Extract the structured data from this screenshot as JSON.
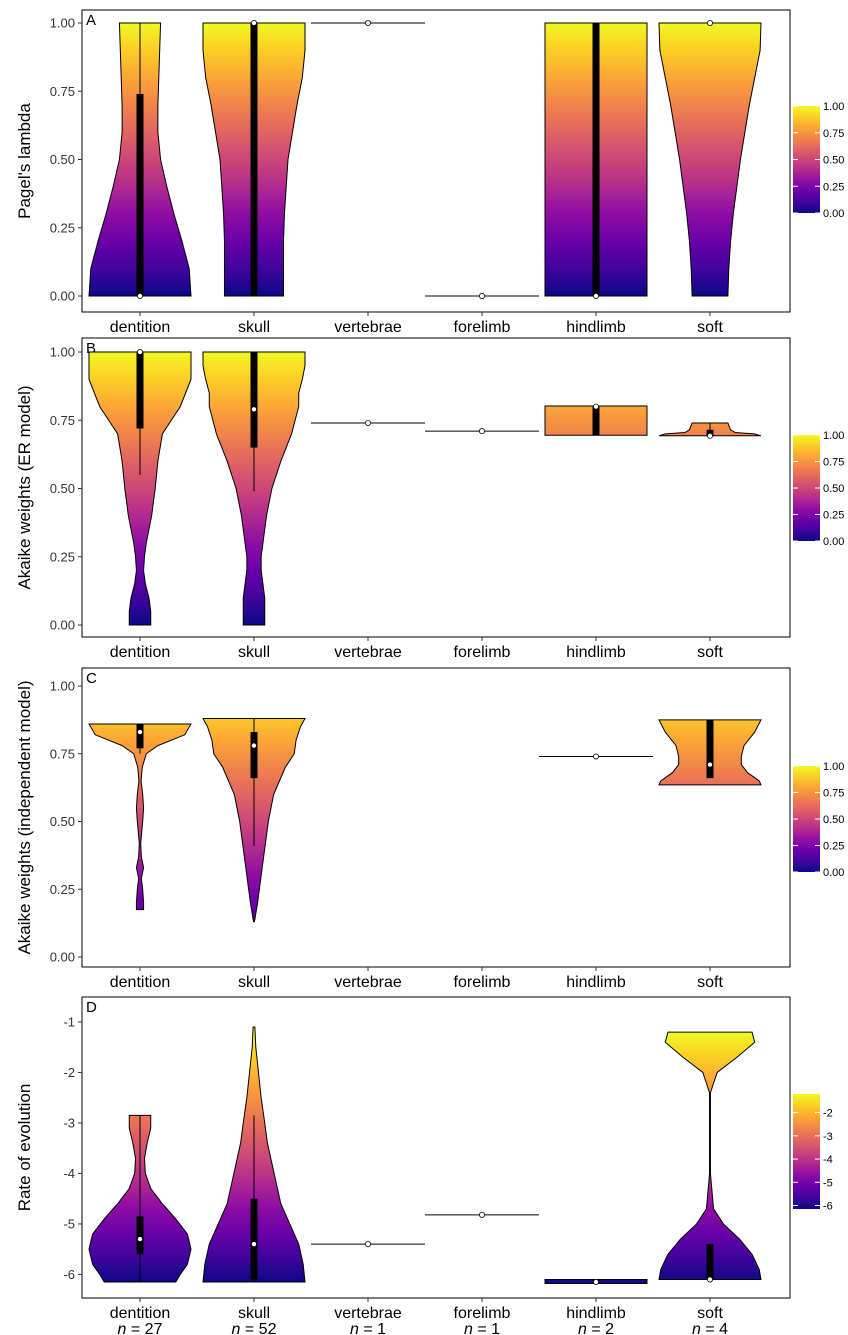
{
  "chart_data": [
    {
      "type": "violin",
      "panel_label": "A",
      "ylabel": "Pagel's lambda",
      "ylim": [
        0,
        1
      ],
      "yticks": [
        0,
        0.25,
        0.5,
        0.75,
        1
      ],
      "ytick_labels": [
        "0.00",
        "0.25",
        "0.50",
        "0.75",
        "1.00"
      ],
      "categories": [
        "dentition",
        "skull",
        "vertebrae",
        "forelimb",
        "hindlimb",
        "soft"
      ],
      "colorbar": {
        "range": [
          0,
          1
        ],
        "ticks": [
          0,
          0.25,
          0.5,
          0.75,
          1
        ],
        "tick_labels": [
          "0.00",
          "0.25",
          "0.50",
          "0.75",
          "1.00"
        ]
      },
      "violins": [
        {
          "category": "dentition",
          "profile": [
            [
              0,
              0.57
            ],
            [
              0.1,
              0.55
            ],
            [
              0.2,
              0.47
            ],
            [
              0.3,
              0.38
            ],
            [
              0.4,
              0.3
            ],
            [
              0.5,
              0.23
            ],
            [
              0.6,
              0.2
            ],
            [
              0.7,
              0.2
            ],
            [
              0.8,
              0.21
            ],
            [
              0.9,
              0.22
            ],
            [
              1.0,
              0.23
            ]
          ],
          "median": 0.0,
          "q1": 0.0,
          "q3": 0.74,
          "wmin": 0.0,
          "wmax": 1.0
        },
        {
          "category": "skull",
          "profile": [
            [
              0,
              0.33
            ],
            [
              0.1,
              0.33
            ],
            [
              0.2,
              0.33
            ],
            [
              0.3,
              0.34
            ],
            [
              0.4,
              0.36
            ],
            [
              0.5,
              0.38
            ],
            [
              0.6,
              0.43
            ],
            [
              0.7,
              0.48
            ],
            [
              0.8,
              0.54
            ],
            [
              0.9,
              0.57
            ],
            [
              1.0,
              0.57
            ]
          ],
          "median": 1.0,
          "q1": 0.0,
          "q3": 1.0,
          "wmin": 0.0,
          "wmax": 1.0
        },
        {
          "category": "vertebrae",
          "profile": [],
          "median": 1.0,
          "q1": 1.0,
          "q3": 1.0,
          "wmin": 1.0,
          "wmax": 1.0
        },
        {
          "category": "forelimb",
          "profile": [],
          "median": 0.0,
          "q1": 0.0,
          "q3": 0.0,
          "wmin": 0.0,
          "wmax": 0.0
        },
        {
          "category": "hindlimb",
          "profile": [
            [
              0,
              0.57
            ],
            [
              0.5,
              0.57
            ],
            [
              1.0,
              0.57
            ]
          ],
          "median": 0.0,
          "q1": 0.0,
          "q3": 1.0,
          "wmin": 0.0,
          "wmax": 1.0
        },
        {
          "category": "soft",
          "profile": [
            [
              0,
              0.2
            ],
            [
              0.1,
              0.21
            ],
            [
              0.2,
              0.23
            ],
            [
              0.3,
              0.26
            ],
            [
              0.4,
              0.3
            ],
            [
              0.5,
              0.34
            ],
            [
              0.6,
              0.39
            ],
            [
              0.7,
              0.44
            ],
            [
              0.8,
              0.5
            ],
            [
              0.9,
              0.56
            ],
            [
              1.0,
              0.57
            ]
          ],
          "median": 1.0,
          "q1": 1.0,
          "q3": 1.0,
          "wmin": 1.0,
          "wmax": 1.0
        }
      ]
    },
    {
      "type": "violin",
      "panel_label": "B",
      "ylabel": "Akaike weights (ER model)",
      "ylim": [
        0,
        1
      ],
      "yticks": [
        0,
        0.25,
        0.5,
        0.75,
        1
      ],
      "ytick_labels": [
        "0.00",
        "0.25",
        "0.50",
        "0.75",
        "1.00"
      ],
      "categories": [
        "dentition",
        "skull",
        "vertebrae",
        "forelimb",
        "hindlimb",
        "soft"
      ],
      "colorbar": {
        "range": [
          0,
          1
        ],
        "ticks": [
          0,
          0.25,
          0.5,
          0.75,
          1
        ],
        "tick_labels": [
          "0.00",
          "0.25",
          "0.50",
          "0.75",
          "1.00"
        ]
      },
      "violins": [
        {
          "category": "dentition",
          "profile": [
            [
              0,
              0.12
            ],
            [
              0.05,
              0.12
            ],
            [
              0.1,
              0.1
            ],
            [
              0.15,
              0.06
            ],
            [
              0.2,
              0.04
            ],
            [
              0.25,
              0.05
            ],
            [
              0.3,
              0.07
            ],
            [
              0.35,
              0.1
            ],
            [
              0.4,
              0.13
            ],
            [
              0.45,
              0.15
            ],
            [
              0.5,
              0.17
            ],
            [
              0.6,
              0.2
            ],
            [
              0.7,
              0.25
            ],
            [
              0.8,
              0.45
            ],
            [
              0.9,
              0.57
            ],
            [
              1.0,
              0.57
            ]
          ],
          "median": 1.0,
          "q1": 0.72,
          "q3": 1.0,
          "wmin": 0.55,
          "wmax": 1.0
        },
        {
          "category": "skull",
          "profile": [
            [
              0,
              0.12
            ],
            [
              0.1,
              0.12
            ],
            [
              0.15,
              0.1
            ],
            [
              0.2,
              0.08
            ],
            [
              0.25,
              0.08
            ],
            [
              0.3,
              0.1
            ],
            [
              0.4,
              0.14
            ],
            [
              0.5,
              0.2
            ],
            [
              0.6,
              0.3
            ],
            [
              0.7,
              0.42
            ],
            [
              0.8,
              0.5
            ],
            [
              0.85,
              0.5
            ],
            [
              0.9,
              0.54
            ],
            [
              0.95,
              0.57
            ],
            [
              1.0,
              0.57
            ]
          ],
          "median": 0.79,
          "q1": 0.65,
          "q3": 1.0,
          "wmin": 0.49,
          "wmax": 1.0
        },
        {
          "category": "vertebrae",
          "profile": [],
          "median": 0.74,
          "q1": 0.74,
          "q3": 0.74,
          "wmin": 0.74,
          "wmax": 0.74
        },
        {
          "category": "forelimb",
          "profile": [],
          "median": 0.71,
          "q1": 0.71,
          "q3": 0.71,
          "wmin": 0.71,
          "wmax": 0.71
        },
        {
          "category": "hindlimb",
          "profile": [
            [
              0.695,
              0.57
            ],
            [
              0.75,
              0.57
            ],
            [
              0.802,
              0.57
            ]
          ],
          "median": 0.8,
          "q1": 0.695,
          "q3": 0.8,
          "wmin": 0.695,
          "wmax": 0.802
        },
        {
          "category": "soft",
          "profile": [
            [
              0.693,
              0.57
            ],
            [
              0.7,
              0.5
            ],
            [
              0.705,
              0.28
            ],
            [
              0.715,
              0.23
            ],
            [
              0.74,
              0.2
            ]
          ],
          "median": 0.693,
          "q1": 0.693,
          "q3": 0.715,
          "wmin": 0.693,
          "wmax": 0.74
        }
      ]
    },
    {
      "type": "violin",
      "panel_label": "C",
      "ylabel": "Akaike weights (independent model)",
      "ylim": [
        0,
        1
      ],
      "yticks": [
        0,
        0.25,
        0.5,
        0.75,
        1
      ],
      "ytick_labels": [
        "0.00",
        "0.25",
        "0.50",
        "0.75",
        "1.00"
      ],
      "categories": [
        "dentition",
        "skull",
        "vertebrae",
        "forelimb",
        "hindlimb",
        "soft"
      ],
      "colorbar": {
        "range": [
          0,
          1
        ],
        "ticks": [
          0,
          0.25,
          0.5,
          0.75,
          1
        ],
        "tick_labels": [
          "0.00",
          "0.25",
          "0.50",
          "0.75",
          "1.00"
        ]
      },
      "violins": [
        {
          "category": "dentition",
          "profile": [
            [
              0.175,
              0.04
            ],
            [
              0.2,
              0.04
            ],
            [
              0.25,
              0.03
            ],
            [
              0.29,
              0.015
            ],
            [
              0.33,
              0.04
            ],
            [
              0.37,
              0.015
            ],
            [
              0.42,
              0.008
            ],
            [
              0.5,
              0.03
            ],
            [
              0.55,
              0.04
            ],
            [
              0.6,
              0.03
            ],
            [
              0.65,
              0.012
            ],
            [
              0.7,
              0.025
            ],
            [
              0.75,
              0.07
            ],
            [
              0.78,
              0.2
            ],
            [
              0.82,
              0.5
            ],
            [
              0.86,
              0.57
            ]
          ],
          "median": 0.83,
          "q1": 0.77,
          "q3": 0.86,
          "wmin": 0.75,
          "wmax": 0.86
        },
        {
          "category": "skull",
          "profile": [
            [
              0.13,
              0.005
            ],
            [
              0.2,
              0.04
            ],
            [
              0.3,
              0.08
            ],
            [
              0.4,
              0.12
            ],
            [
              0.5,
              0.16
            ],
            [
              0.6,
              0.22
            ],
            [
              0.7,
              0.35
            ],
            [
              0.75,
              0.45
            ],
            [
              0.8,
              0.47
            ],
            [
              0.85,
              0.52
            ],
            [
              0.88,
              0.57
            ]
          ],
          "median": 0.78,
          "q1": 0.66,
          "q3": 0.83,
          "wmin": 0.41,
          "wmax": 0.88
        },
        {
          "category": "hindlimb",
          "profile": [],
          "median": 0.74,
          "q1": 0.74,
          "q3": 0.74,
          "wmin": 0.74,
          "wmax": 0.74
        },
        {
          "category": "soft",
          "profile": [
            [
              0.635,
              0.57
            ],
            [
              0.65,
              0.55
            ],
            [
              0.68,
              0.42
            ],
            [
              0.71,
              0.35
            ],
            [
              0.74,
              0.35
            ],
            [
              0.78,
              0.38
            ],
            [
              0.83,
              0.5
            ],
            [
              0.875,
              0.57
            ]
          ],
          "median": 0.71,
          "q1": 0.66,
          "q3": 0.875,
          "wmin": 0.66,
          "wmax": 0.875
        }
      ]
    },
    {
      "type": "violin",
      "panel_label": "D",
      "ylabel": "Rate of evolution",
      "ylim": [
        -6.15,
        -1
      ],
      "yticks": [
        -6,
        -5,
        -4,
        -3,
        -2,
        -1
      ],
      "ytick_labels": [
        "-6",
        "-5",
        "-4",
        "-3",
        "-2",
        "-1"
      ],
      "categories": [
        "dentition",
        "skull",
        "vertebrae",
        "forelimb",
        "hindlimb",
        "soft"
      ],
      "n_labels": [
        "n = 27",
        "n = 52",
        "n = 1",
        "n = 1",
        "n = 2",
        "n = 4"
      ],
      "colorbar": {
        "range": [
          -6.15,
          -1.2
        ],
        "ticks": [
          -6,
          -5,
          -4,
          -3,
          -2
        ],
        "tick_labels": [
          "-6",
          "-5",
          "-4",
          "-3",
          "-2"
        ]
      },
      "violins": [
        {
          "category": "dentition",
          "profile": [
            [
              -6.15,
              0.4
            ],
            [
              -6.0,
              0.45
            ],
            [
              -5.8,
              0.53
            ],
            [
              -5.5,
              0.57
            ],
            [
              -5.2,
              0.53
            ],
            [
              -4.9,
              0.4
            ],
            [
              -4.6,
              0.25
            ],
            [
              -4.3,
              0.12
            ],
            [
              -4.0,
              0.06
            ],
            [
              -3.7,
              0.05
            ],
            [
              -3.4,
              0.08
            ],
            [
              -3.1,
              0.12
            ],
            [
              -2.85,
              0.12
            ]
          ],
          "median": -5.3,
          "q1": -5.6,
          "q3": -4.85,
          "wmin": -6.15,
          "wmax": -2.85
        },
        {
          "category": "skull",
          "profile": [
            [
              -6.15,
              0.57
            ],
            [
              -5.8,
              0.55
            ],
            [
              -5.4,
              0.5
            ],
            [
              -5.0,
              0.4
            ],
            [
              -4.6,
              0.3
            ],
            [
              -4.2,
              0.25
            ],
            [
              -3.8,
              0.2
            ],
            [
              -3.4,
              0.15
            ],
            [
              -3.0,
              0.12
            ],
            [
              -2.5,
              0.08
            ],
            [
              -2.0,
              0.05
            ],
            [
              -1.5,
              0.02
            ],
            [
              -1.1,
              0.01
            ]
          ],
          "median": -5.4,
          "q1": -6.1,
          "q3": -4.5,
          "wmin": -6.15,
          "wmax": -2.85
        },
        {
          "category": "vertebrae",
          "profile": [],
          "median": -5.4,
          "q1": -5.4,
          "q3": -5.4,
          "wmin": -5.4,
          "wmax": -5.4
        },
        {
          "category": "forelimb",
          "profile": [],
          "median": -4.82,
          "q1": -4.82,
          "q3": -4.82,
          "wmin": -4.82,
          "wmax": -4.82
        },
        {
          "category": "hindlimb",
          "profile": [
            [
              -6.18,
              0.57
            ],
            [
              -6.13,
              0.57
            ],
            [
              -6.1,
              0.57
            ]
          ],
          "median": -6.15,
          "q1": -6.15,
          "q3": -6.15,
          "wmin": -6.15,
          "wmax": -6.15
        },
        {
          "category": "soft",
          "profile": [
            [
              -6.1,
              0.57
            ],
            [
              -5.9,
              0.55
            ],
            [
              -5.6,
              0.47
            ],
            [
              -5.3,
              0.33
            ],
            [
              -5.0,
              0.15
            ],
            [
              -4.7,
              0.04
            ],
            [
              -4.0,
              0.005
            ],
            [
              -3.0,
              0.005
            ],
            [
              -2.4,
              0.005
            ],
            [
              -2.0,
              0.08
            ],
            [
              -1.7,
              0.3
            ],
            [
              -1.4,
              0.5
            ],
            [
              -1.2,
              0.47
            ]
          ],
          "median": -6.1,
          "q1": -6.1,
          "q3": -5.4,
          "wmin": -6.1,
          "wmax": -5.4
        }
      ]
    }
  ]
}
